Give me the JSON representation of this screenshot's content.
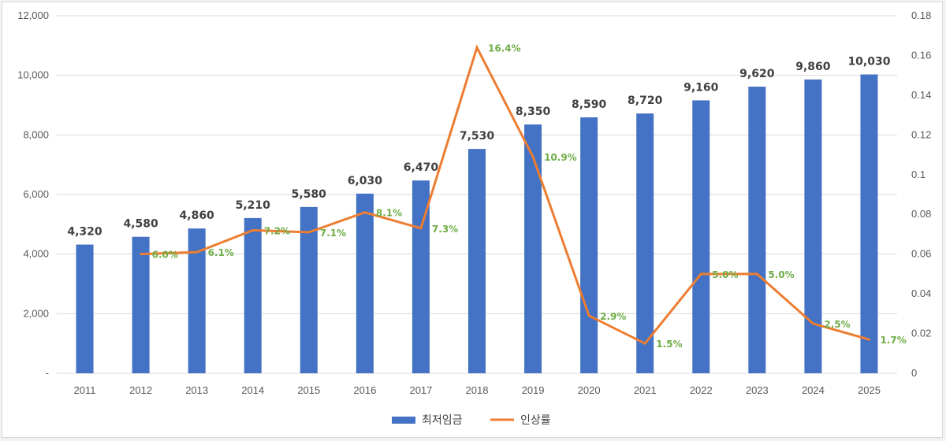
{
  "chart_data": {
    "type": "bar",
    "categories": [
      "2011",
      "2012",
      "2013",
      "2014",
      "2015",
      "2016",
      "2017",
      "2018",
      "2019",
      "2020",
      "2021",
      "2022",
      "2023",
      "2024",
      "2025"
    ],
    "series": [
      {
        "name": "최저임금",
        "type": "bar",
        "axis": "left",
        "color": "#4472c4",
        "values": [
          4320,
          4580,
          4860,
          5210,
          5580,
          6030,
          6470,
          7530,
          8350,
          8590,
          8720,
          9160,
          9620,
          9860,
          10030
        ],
        "labels": [
          "4,320",
          "4,580",
          "4,860",
          "5,210",
          "5,580",
          "6,030",
          "6,470",
          "7,530",
          "8,350",
          "8,590",
          "8,720",
          "9,160",
          "9,620",
          "9,860",
          "10,030"
        ]
      },
      {
        "name": "인상률",
        "type": "line",
        "axis": "right",
        "color": "#ed7d31",
        "values": [
          null,
          0.06,
          0.061,
          0.072,
          0.071,
          0.081,
          0.073,
          0.164,
          0.109,
          0.029,
          0.015,
          0.05,
          0.05,
          0.025,
          0.017
        ],
        "labels": [
          "",
          "6.0%",
          "6.1%",
          "7.2%",
          "7.1%",
          "8.1%",
          "7.3%",
          "16.4%",
          "10.9%",
          "2.9%",
          "1.5%",
          "5.0%",
          "5.0%",
          "2.5%",
          "1.7%"
        ],
        "label_color": "#70ad47"
      }
    ],
    "y_left": {
      "lim": [
        0,
        12000
      ],
      "ticks": [
        "-",
        "2,000",
        "4,000",
        "6,000",
        "8,000",
        "10,000",
        "12,000"
      ]
    },
    "y_right": {
      "lim": [
        0,
        0.18
      ],
      "ticks": [
        "0",
        "0.02",
        "0.04",
        "0.06",
        "0.08",
        "0.1",
        "0.12",
        "0.14",
        "0.16",
        "0.18"
      ]
    },
    "grid": true,
    "legend_position": "bottom"
  }
}
